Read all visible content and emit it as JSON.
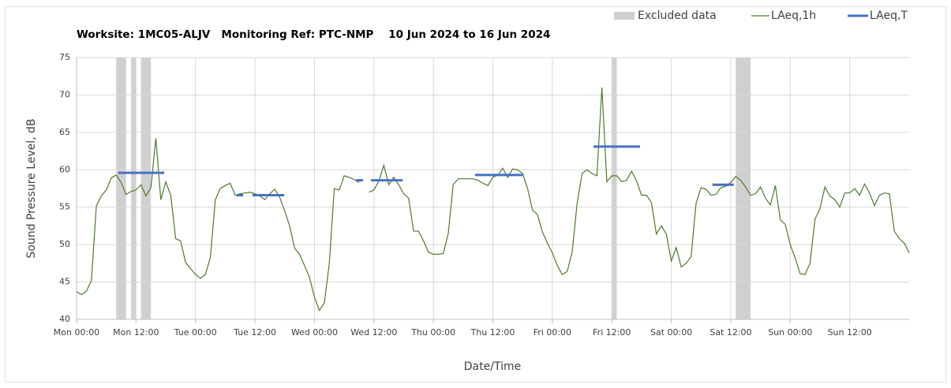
{
  "chart_data": {
    "type": "line",
    "title": "Worksite: 1MC05-ALJV   Monitoring Ref: PTC-NMP    10 Jun 2024 to 16 Jun 2024",
    "xlabel": "Date/Time",
    "ylabel": "Sound Pressure Level, dB",
    "xlim": [
      0,
      168
    ],
    "ylim": [
      40,
      75
    ],
    "yticks": [
      40,
      45,
      50,
      55,
      60,
      65,
      70,
      75
    ],
    "xticks": [
      {
        "value": 0,
        "label": "Mon 00:00"
      },
      {
        "value": 12,
        "label": "Mon 12:00"
      },
      {
        "value": 24,
        "label": "Tue 00:00"
      },
      {
        "value": 36,
        "label": "Tue 12:00"
      },
      {
        "value": 48,
        "label": "Wed 00:00"
      },
      {
        "value": 60,
        "label": "Wed 12:00"
      },
      {
        "value": 72,
        "label": "Thu 00:00"
      },
      {
        "value": 84,
        "label": "Thu 12:00"
      },
      {
        "value": 96,
        "label": "Fri 00:00"
      },
      {
        "value": 108,
        "label": "Fri 12:00"
      },
      {
        "value": 120,
        "label": "Sat 00:00"
      },
      {
        "value": 132,
        "label": "Sat 12:00"
      },
      {
        "value": 144,
        "label": "Sun 00:00"
      },
      {
        "value": 156,
        "label": "Sun 12:00"
      }
    ],
    "grid": true,
    "legend": "top-right",
    "excluded": {
      "name": "Excluded data",
      "color": "#d0d0d0",
      "ranges": [
        [
          8,
          10
        ],
        [
          11,
          12
        ],
        [
          13,
          15
        ],
        [
          108,
          109
        ],
        [
          133,
          136
        ]
      ]
    },
    "series": [
      {
        "name": "LAeq,1h",
        "color": "#4e7a2e",
        "x": [
          0,
          1,
          2,
          3,
          4,
          5,
          6,
          7,
          8,
          9,
          10,
          11,
          12,
          13,
          14,
          15,
          16,
          17,
          18,
          19,
          20,
          21,
          22,
          23,
          24,
          25,
          26,
          27,
          28,
          29,
          30,
          31,
          32,
          33,
          34,
          35,
          36,
          37,
          38,
          39,
          40,
          41,
          42,
          43,
          44,
          45,
          46,
          47,
          48,
          49,
          50,
          51,
          52,
          53,
          54,
          55,
          56,
          57,
          58,
          59,
          60,
          61,
          62,
          63,
          64,
          65,
          66,
          67,
          68,
          69,
          70,
          71,
          72,
          73,
          74,
          75,
          76,
          77,
          78,
          79,
          80,
          81,
          82,
          83,
          84,
          85,
          86,
          87,
          88,
          89,
          90,
          91,
          92,
          93,
          94,
          95,
          96,
          97,
          98,
          99,
          100,
          101,
          102,
          103,
          104,
          105,
          106,
          107,
          108,
          109,
          110,
          111,
          112,
          113,
          114,
          115,
          116,
          117,
          118,
          119,
          120,
          121,
          122,
          123,
          124,
          125,
          126,
          127,
          128,
          129,
          130,
          131,
          132,
          133,
          134,
          135,
          136,
          137,
          138,
          139,
          140,
          141,
          142,
          143,
          144,
          145,
          146,
          147,
          148,
          149,
          150,
          151,
          152,
          153,
          154,
          155,
          156,
          157,
          158,
          159,
          160,
          161,
          162,
          163,
          164,
          165,
          166,
          167,
          168
        ],
        "values": [
          43.7,
          43.3,
          43.8,
          45.2,
          55.2,
          56.5,
          57.3,
          58.9,
          59.3,
          58.3,
          56.7,
          57.1,
          57.3,
          58.0,
          56.5,
          57.6,
          64.2,
          56.0,
          58.4,
          56.6,
          50.8,
          50.5,
          47.6,
          46.8,
          46.0,
          45.5,
          46.0,
          48.3,
          56.0,
          57.5,
          57.9,
          58.2,
          56.6,
          56.8,
          56.9,
          57.0,
          56.8,
          56.5,
          56.0,
          56.8,
          57.4,
          56.3,
          54.5,
          52.5,
          49.5,
          48.7,
          47.2,
          45.6,
          43.0,
          41.2,
          42.2,
          47.5,
          57.5,
          57.3,
          59.2,
          59.0,
          58.7,
          58.3,
          null,
          57.0,
          57.3,
          58.5,
          60.6,
          58.0,
          59.0,
          58.0,
          56.8,
          56.2,
          51.8,
          51.8,
          50.5,
          49.0,
          48.7,
          48.7,
          48.8,
          51.5,
          58.0,
          58.8,
          58.8,
          58.8,
          58.8,
          58.6,
          58.2,
          57.9,
          59.0,
          59.3,
          60.2,
          59.0,
          60.1,
          60.0,
          59.5,
          57.5,
          54.6,
          54.0,
          51.7,
          50.2,
          48.9,
          47.2,
          46.0,
          46.4,
          49.0,
          55.5,
          59.5,
          60.0,
          59.5,
          59.2,
          71.0,
          58.4,
          59.2,
          59.2,
          58.4,
          58.6,
          59.8,
          58.5,
          56.6,
          56.6,
          55.6,
          51.4,
          52.5,
          51.4,
          47.8,
          49.6,
          47.0,
          47.5,
          48.4,
          55.5,
          57.6,
          57.4,
          56.6,
          56.7,
          57.6,
          57.8,
          58.3,
          59.1,
          58.6,
          57.7,
          56.6,
          56.8,
          57.7,
          56.2,
          55.3,
          57.9,
          53.3,
          52.7,
          50.0,
          48.2,
          46.1,
          46.0,
          47.5,
          53.4,
          54.8,
          57.7,
          56.5,
          56.0,
          55.0,
          56.9,
          56.9,
          57.5,
          56.6,
          58.1,
          56.9,
          55.2,
          56.6,
          56.9,
          56.8,
          51.8,
          50.8,
          50.2,
          48.9
        ]
      },
      {
        "name": "LAeq,T",
        "color": "#4472c4",
        "periods": [
          [
            8.4,
            17.7
          ],
          [
            32.3,
            33.6
          ],
          [
            35.5,
            41.9
          ],
          [
            56.4,
            57.8
          ],
          [
            59.4,
            65.8
          ],
          [
            80.4,
            90
          ],
          [
            104.3,
            113.7
          ],
          [
            128.3,
            132.6
          ]
        ],
        "values": [
          59.6,
          56.6,
          56.6,
          58.6,
          58.6,
          59.3,
          63.1,
          58.0
        ]
      }
    ]
  }
}
